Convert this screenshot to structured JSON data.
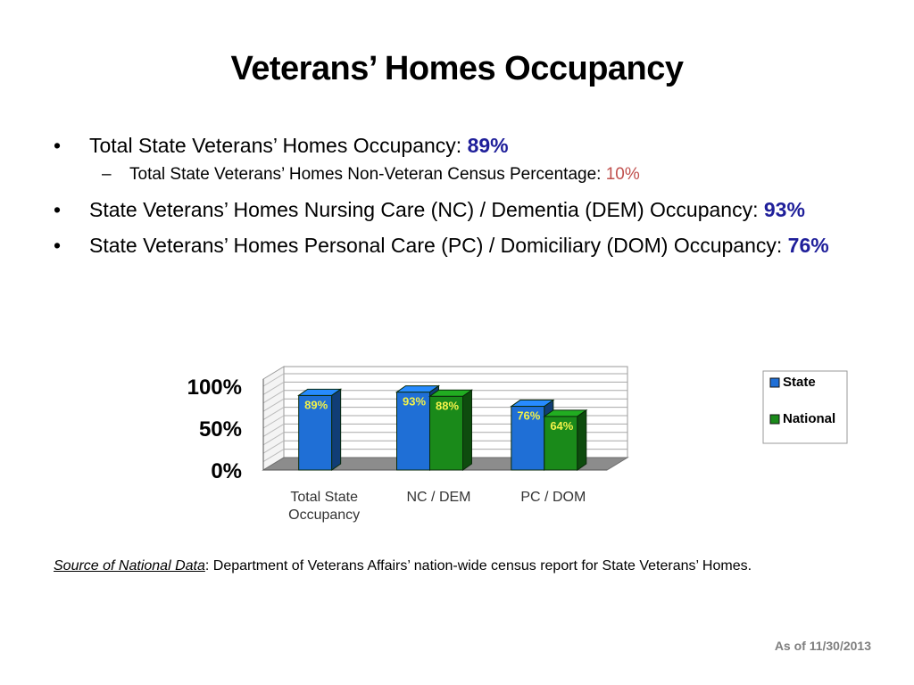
{
  "slide": {
    "title": "Veterans’ Homes Occupancy",
    "bullets": [
      {
        "text": "Total State Veterans’ Homes Occupancy:",
        "value": "89%"
      },
      {
        "text": "State Veterans’ Homes Nursing Care (NC) / Dementia (DEM) Occupancy:",
        "value": "93%"
      },
      {
        "text": "State Veterans’ Homes Personal Care (PC) / Domiciliary (DOM) Occupancy:",
        "value": "76%"
      }
    ],
    "sub_bullet": {
      "text": "Total State Veterans’ Homes Non-Veteran Census Percentage:",
      "value": "10%"
    },
    "source": {
      "label": "Source of National Data",
      "text": ":  Department of Veterans Affairs’ nation-wide census report for State Veterans’ Homes."
    },
    "as_of": "As of 11/30/2013"
  },
  "colors": {
    "state": "#1f6fd6",
    "national": "#1a8a1a",
    "value_highlight": "#1f1f9a",
    "non_veteran_value": "#c0504d",
    "data_label": "#f2f24a",
    "floor": "#8c8c8c"
  },
  "chart_data": {
    "type": "bar",
    "categories": [
      "Total State Occupancy",
      "NC / DEM",
      "PC / DOM"
    ],
    "series": [
      {
        "name": "State",
        "values": [
          89,
          93,
          76
        ],
        "labels": [
          "89%",
          "93%",
          "76%"
        ]
      },
      {
        "name": "National",
        "values": [
          null,
          88,
          64
        ],
        "labels": [
          "",
          "88%",
          "64%"
        ]
      }
    ],
    "ylim": [
      0,
      100
    ],
    "yticks": [
      "100%",
      "50%",
      "0%"
    ],
    "grid": true,
    "legend_position": "right",
    "three_d": true
  }
}
